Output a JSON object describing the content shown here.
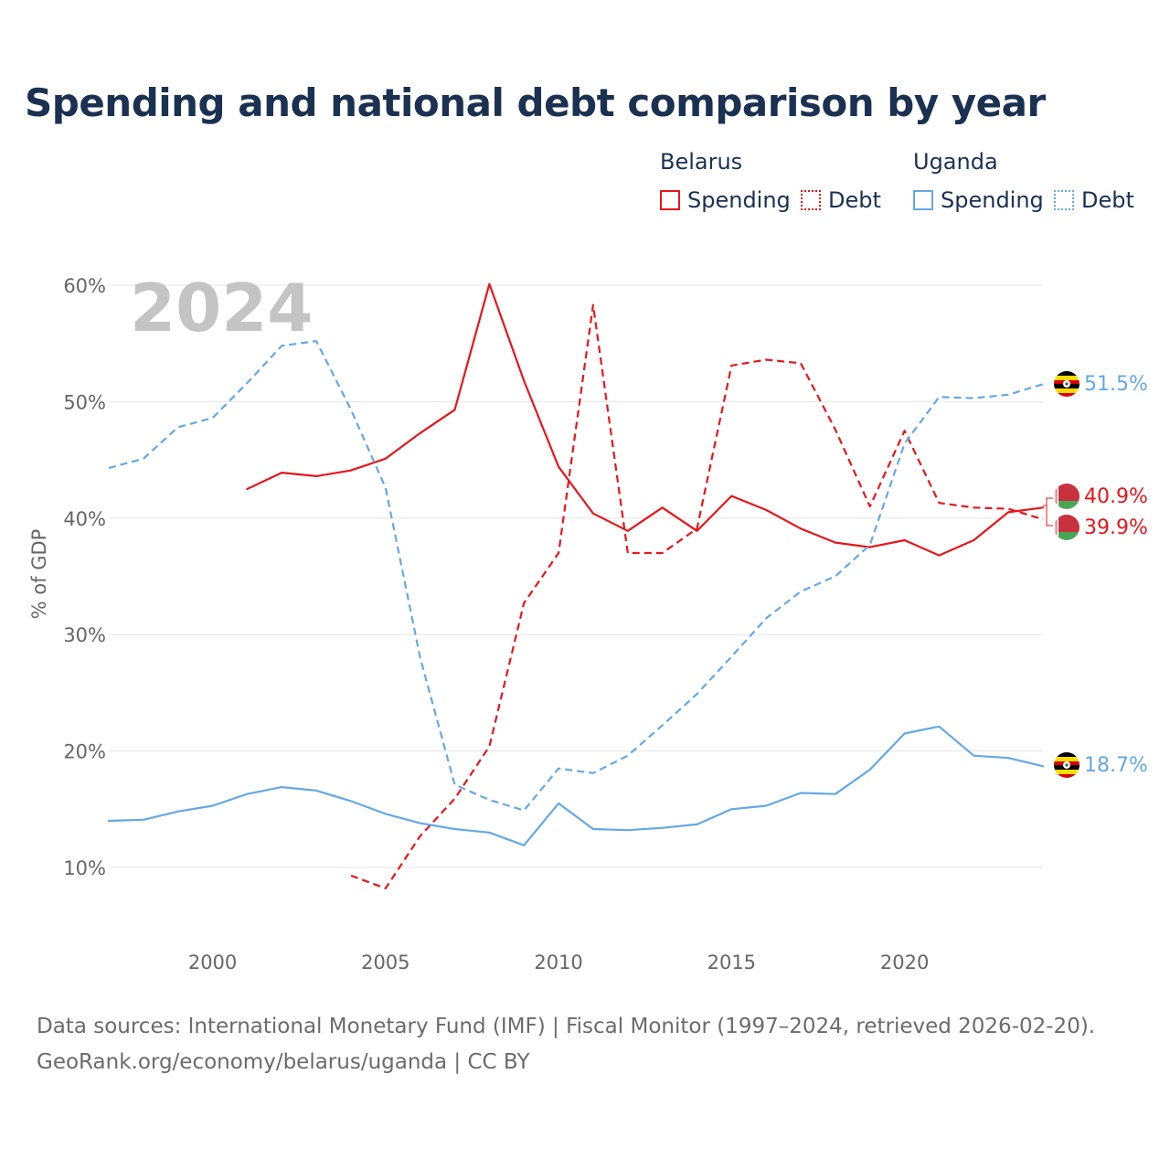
{
  "chart_data": {
    "type": "line",
    "title": "Spending and national debt comparison by year",
    "year_watermark": "2024",
    "ylabel": "% of GDP",
    "xlabel": "",
    "xlim": [
      1997,
      2024
    ],
    "ylim": [
      4,
      62
    ],
    "x_ticks": [
      2000,
      2005,
      2010,
      2015,
      2020
    ],
    "y_ticks": [
      10,
      20,
      30,
      40,
      50,
      60
    ],
    "y_tick_labels": [
      "10%",
      "20%",
      "30%",
      "40%",
      "50%",
      "60%"
    ],
    "grid": "horizontal",
    "legend": {
      "position": "top-right",
      "groups": [
        {
          "country": "Belarus",
          "spending_label": "Spending",
          "debt_label": "Debt"
        },
        {
          "country": "Uganda",
          "spending_label": "Spending",
          "debt_label": "Debt"
        }
      ]
    },
    "series": [
      {
        "name": "Belarus Spending",
        "country": "Belarus",
        "metric": "Spending",
        "color": "#e8151b",
        "dashed": false,
        "end_label": "40.9%",
        "end_value": 40.9,
        "points": [
          [
            2001,
            42.5
          ],
          [
            2002,
            43.9
          ],
          [
            2003,
            43.6
          ],
          [
            2004,
            44.1
          ],
          [
            2005,
            45.1
          ],
          [
            2006,
            47.3
          ],
          [
            2007,
            49.3
          ],
          [
            2008,
            60.1
          ],
          [
            2009,
            51.8
          ],
          [
            2010,
            44.4
          ],
          [
            2011,
            40.4
          ],
          [
            2012,
            38.9
          ],
          [
            2013,
            40.9
          ],
          [
            2014,
            38.9
          ],
          [
            2015,
            41.9
          ],
          [
            2016,
            40.7
          ],
          [
            2017,
            39.1
          ],
          [
            2018,
            37.9
          ],
          [
            2019,
            37.5
          ],
          [
            2020,
            38.1
          ],
          [
            2021,
            36.8
          ],
          [
            2022,
            38.1
          ],
          [
            2023,
            40.5
          ],
          [
            2024,
            40.9
          ]
        ]
      },
      {
        "name": "Belarus Debt",
        "country": "Belarus",
        "metric": "Debt",
        "color": "#e8151b",
        "dashed": true,
        "end_label": "39.9%",
        "end_value": 39.9,
        "points": [
          [
            2004,
            9.3
          ],
          [
            2005,
            8.2
          ],
          [
            2006,
            12.7
          ],
          [
            2007,
            15.9
          ],
          [
            2008,
            20.4
          ],
          [
            2009,
            32.7
          ],
          [
            2010,
            37.0
          ],
          [
            2011,
            58.3
          ],
          [
            2012,
            37.0
          ],
          [
            2013,
            37.0
          ],
          [
            2014,
            39.1
          ],
          [
            2015,
            53.1
          ],
          [
            2016,
            53.6
          ],
          [
            2017,
            53.3
          ],
          [
            2018,
            47.6
          ],
          [
            2019,
            41.0
          ],
          [
            2020,
            47.5
          ],
          [
            2021,
            41.3
          ],
          [
            2022,
            40.9
          ],
          [
            2023,
            40.8
          ],
          [
            2024,
            39.9
          ]
        ]
      },
      {
        "name": "Uganda Spending",
        "country": "Uganda",
        "metric": "Spending",
        "color": "#64a8e6",
        "dashed": false,
        "end_label": "18.7%",
        "end_value": 18.7,
        "points": [
          [
            1997,
            14.0
          ],
          [
            1998,
            14.1
          ],
          [
            1999,
            14.8
          ],
          [
            2000,
            15.3
          ],
          [
            2001,
            16.3
          ],
          [
            2002,
            16.9
          ],
          [
            2003,
            16.6
          ],
          [
            2004,
            15.7
          ],
          [
            2005,
            14.6
          ],
          [
            2006,
            13.8
          ],
          [
            2007,
            13.3
          ],
          [
            2008,
            13.0
          ],
          [
            2009,
            11.9
          ],
          [
            2010,
            15.5
          ],
          [
            2011,
            13.3
          ],
          [
            2012,
            13.2
          ],
          [
            2013,
            13.4
          ],
          [
            2014,
            13.7
          ],
          [
            2015,
            15.0
          ],
          [
            2016,
            15.3
          ],
          [
            2017,
            16.4
          ],
          [
            2018,
            16.3
          ],
          [
            2019,
            18.4
          ],
          [
            2020,
            21.5
          ],
          [
            2021,
            22.1
          ],
          [
            2022,
            19.6
          ],
          [
            2023,
            19.4
          ],
          [
            2024,
            18.7
          ]
        ]
      },
      {
        "name": "Uganda Debt",
        "country": "Uganda",
        "metric": "Debt",
        "color": "#64a8e6",
        "dashed": true,
        "end_label": "51.5%",
        "end_value": 51.5,
        "points": [
          [
            1997,
            44.3
          ],
          [
            1998,
            45.1
          ],
          [
            1999,
            47.8
          ],
          [
            2000,
            48.6
          ],
          [
            2001,
            51.6
          ],
          [
            2002,
            54.8
          ],
          [
            2003,
            55.2
          ],
          [
            2004,
            49.3
          ],
          [
            2005,
            42.6
          ],
          [
            2006,
            28.0
          ],
          [
            2007,
            17.1
          ],
          [
            2008,
            15.8
          ],
          [
            2009,
            14.9
          ],
          [
            2010,
            18.5
          ],
          [
            2011,
            18.1
          ],
          [
            2012,
            19.6
          ],
          [
            2013,
            22.2
          ],
          [
            2014,
            24.9
          ],
          [
            2015,
            28.1
          ],
          [
            2016,
            31.4
          ],
          [
            2017,
            33.7
          ],
          [
            2018,
            35.0
          ],
          [
            2019,
            37.7
          ],
          [
            2020,
            46.4
          ],
          [
            2021,
            50.4
          ],
          [
            2022,
            50.3
          ],
          [
            2023,
            50.6
          ],
          [
            2024,
            51.5
          ]
        ]
      }
    ]
  },
  "source": {
    "line1": "Data sources: International Monetary Fund (IMF) | Fiscal Monitor (1997–2024, retrieved 2026-02-20).",
    "line2": "GeoRank.org/economy/belarus/uganda | CC BY"
  },
  "colors": {
    "belarus": "#e8151b",
    "uganda": "#64a8e6",
    "title": "#1b3152",
    "axis_text": "#666666",
    "grid": "#e5e5e5",
    "watermark": "#c4c4c4"
  }
}
